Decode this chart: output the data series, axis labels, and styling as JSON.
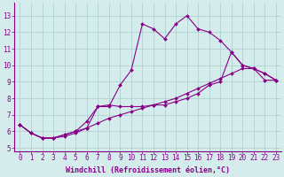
{
  "xlabel": "Windchill (Refroidissement éolien,°C)",
  "ylabel": "",
  "background_color": "#d4ecec",
  "line_color": "#880088",
  "grid_color": "#aacccc",
  "x_ticks": [
    0,
    1,
    2,
    3,
    4,
    5,
    6,
    7,
    8,
    9,
    10,
    11,
    12,
    13,
    14,
    15,
    16,
    17,
    18,
    19,
    20,
    21,
    22,
    23
  ],
  "y_ticks": [
    5,
    6,
    7,
    8,
    9,
    10,
    11,
    12,
    13
  ],
  "xlim": [
    -0.5,
    23.5
  ],
  "ylim": [
    4.8,
    13.8
  ],
  "series": [
    [
      6.4,
      5.9,
      5.6,
      5.6,
      5.7,
      5.9,
      6.2,
      7.5,
      7.5,
      8.8,
      9.7,
      12.5,
      12.2,
      11.6,
      12.5,
      13.0,
      12.2,
      12.0,
      11.5,
      10.8,
      10.0,
      9.8,
      9.1,
      9.1
    ],
    [
      6.4,
      5.9,
      5.6,
      5.6,
      5.8,
      6.0,
      6.6,
      7.5,
      7.6,
      7.5,
      7.5,
      7.5,
      7.6,
      7.6,
      7.8,
      8.0,
      8.3,
      8.8,
      9.0,
      10.8,
      10.0,
      9.8,
      9.5,
      9.1
    ],
    [
      6.4,
      5.9,
      5.6,
      5.6,
      5.8,
      6.0,
      6.2,
      6.5,
      6.8,
      7.0,
      7.2,
      7.4,
      7.6,
      7.8,
      8.0,
      8.3,
      8.6,
      8.9,
      9.2,
      9.5,
      9.8,
      9.8,
      9.5,
      9.1
    ]
  ],
  "tick_fontsize": 5.5,
  "xlabel_fontsize": 6,
  "marker_size": 2.0,
  "linewidth": 0.8
}
